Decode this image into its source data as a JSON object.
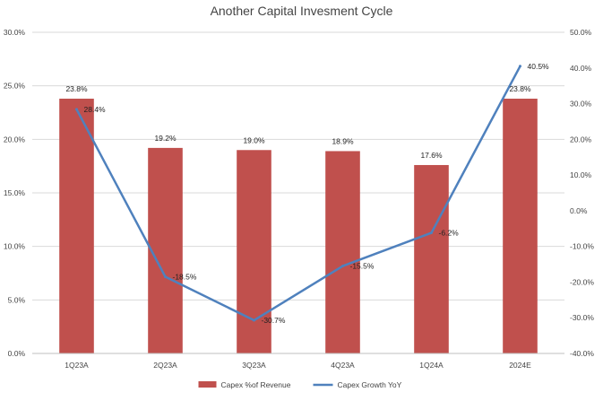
{
  "chart_data": {
    "type": "bar",
    "title": "Another Capital Invesment Cycle",
    "categories": [
      "1Q23A",
      "2Q23A",
      "3Q23A",
      "4Q23A",
      "1Q24A",
      "2024E"
    ],
    "series": [
      {
        "name": "Capex %of Revenue",
        "type": "bar",
        "axis": "left",
        "values": [
          23.8,
          19.2,
          19.0,
          18.9,
          17.6,
          23.8
        ],
        "labels": [
          "23.8%",
          "19.2%",
          "19.0%",
          "18.9%",
          "17.6%",
          "23.8%"
        ],
        "color": "#c0504d"
      },
      {
        "name": "Capex Growth YoY",
        "type": "line",
        "axis": "right",
        "values": [
          28.4,
          -18.5,
          -30.7,
          -15.5,
          -6.2,
          40.5
        ],
        "labels": [
          "28.4%",
          "-18.5%",
          "-30.7%",
          "-15.5%",
          "-6.2%",
          "40.5%"
        ],
        "color": "#4f81bd"
      }
    ],
    "y_left": {
      "ylim": [
        0,
        30
      ],
      "ticks": [
        0,
        5,
        10,
        15,
        20,
        25,
        30
      ],
      "tick_labels": [
        "0.0%",
        "5.0%",
        "10.0%",
        "15.0%",
        "20.0%",
        "25.0%",
        "30.0%"
      ]
    },
    "y_right": {
      "ylim": [
        -40,
        50
      ],
      "ticks": [
        -40,
        -30,
        -20,
        -10,
        0,
        10,
        20,
        30,
        40,
        50
      ],
      "tick_labels": [
        "-40.0%",
        "-30.0%",
        "-20.0%",
        "-10.0%",
        "0.0%",
        "10.0%",
        "20.0%",
        "30.0%",
        "40.0%",
        "50.0%"
      ]
    },
    "grid": true,
    "legend": "bottom"
  }
}
